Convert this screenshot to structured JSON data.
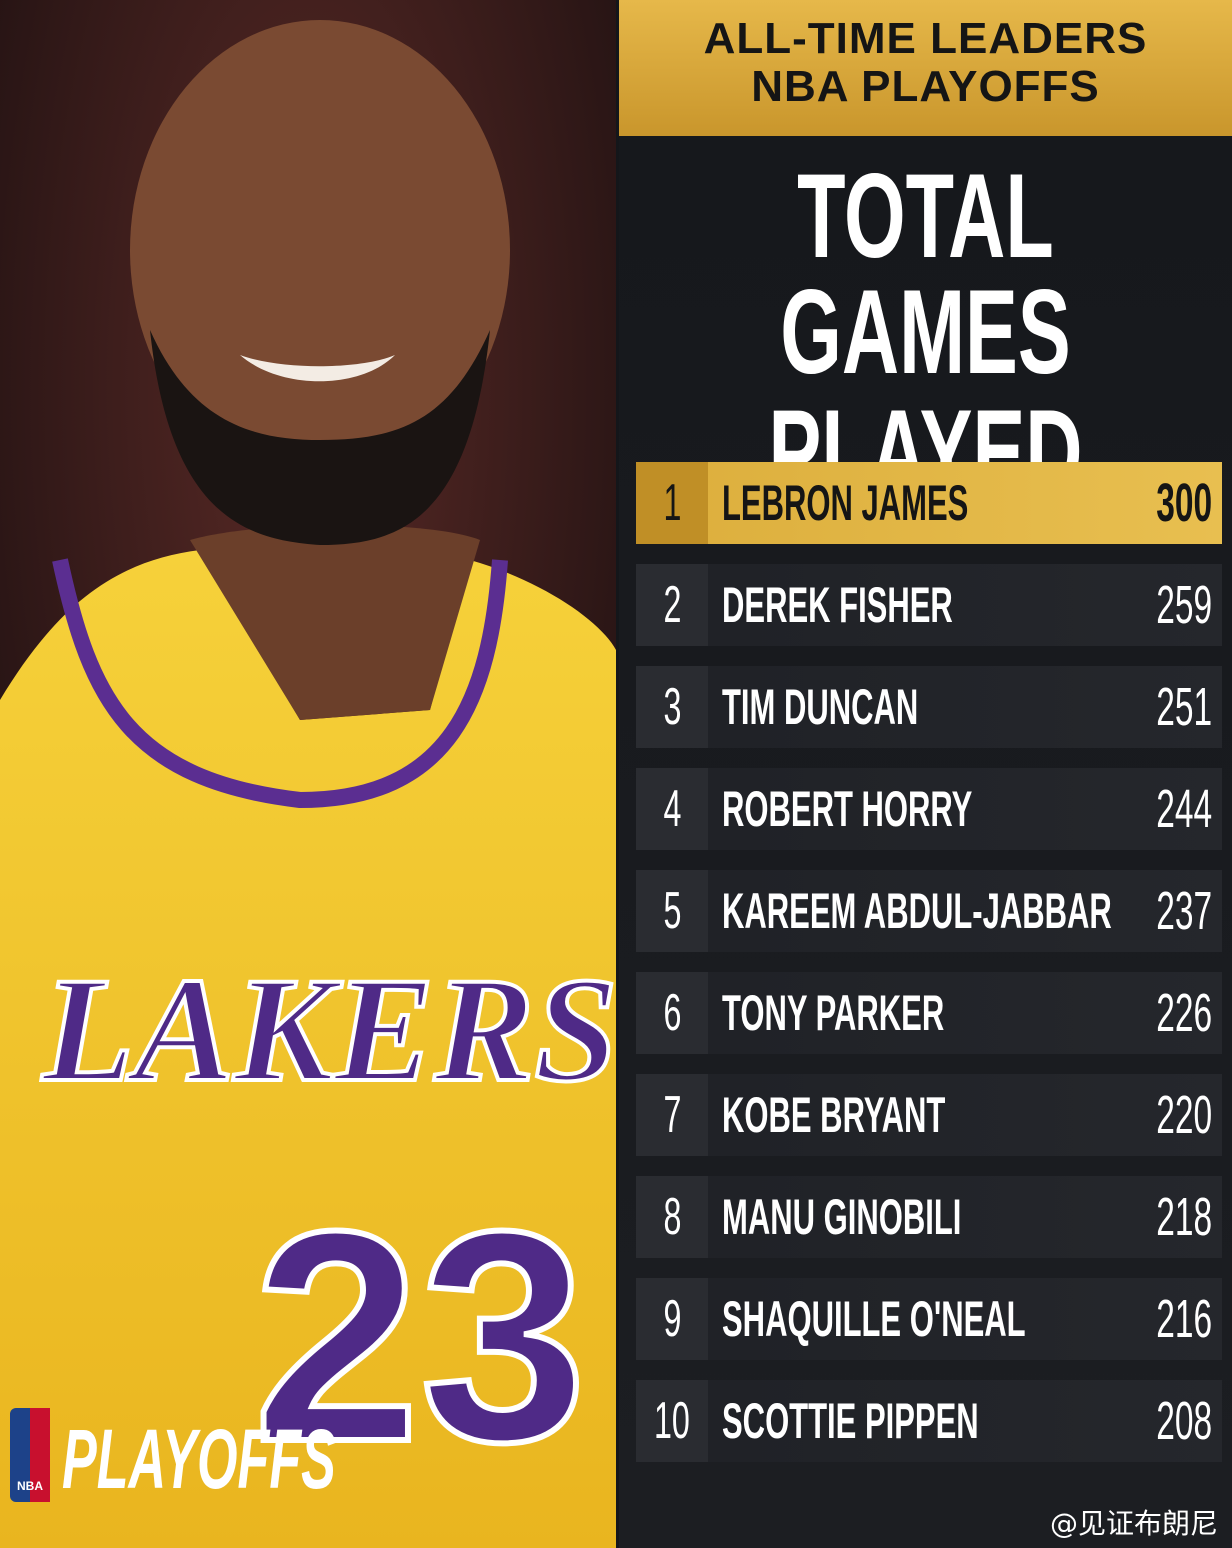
{
  "header": {
    "lines": [
      "ALL-TIME LEADERS",
      "NBA PLAYOFFS"
    ]
  },
  "title": {
    "lines": [
      "TOTAL",
      "GAMES PLAYED"
    ]
  },
  "table": {
    "rows": [
      [
        1,
        "LEBRON JAMES",
        300
      ],
      [
        2,
        "DEREK FISHER",
        259
      ],
      [
        3,
        "TIM DUNCAN",
        251
      ],
      [
        4,
        "ROBERT HORRY",
        244
      ],
      [
        5,
        "KAREEM ABDUL-JABBAR",
        237
      ],
      [
        6,
        "TONY PARKER",
        226
      ],
      [
        7,
        "KOBE BRYANT",
        220
      ],
      [
        8,
        "MANU GINOBILI",
        218
      ],
      [
        9,
        "SHAQUILLE O'NEAL",
        216
      ],
      [
        10,
        "SCOTTIE PIPPEN",
        208
      ]
    ]
  },
  "photo": {
    "jersey_wordmark": "LAKERS",
    "jersey_number": "23"
  },
  "logo": {
    "badge": "NBA",
    "text": "PLAYOFFS"
  },
  "watermark": "@见证布朗尼"
}
